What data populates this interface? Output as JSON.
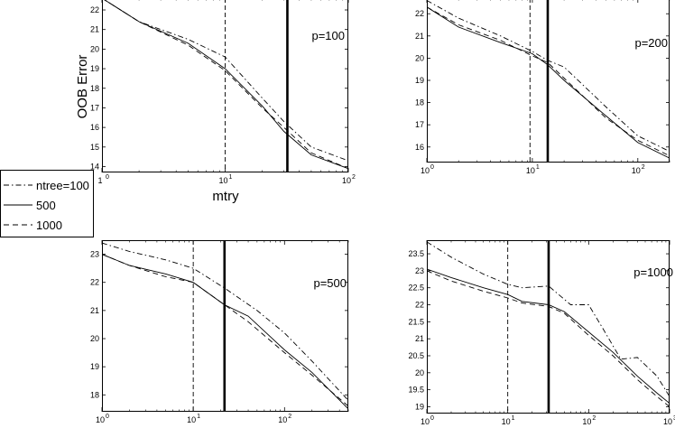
{
  "legend": {
    "entries": [
      {
        "label": "ntree=100",
        "dash": "dashdot"
      },
      {
        "label": "500",
        "dash": "solid"
      },
      {
        "label": "1000",
        "dash": "dashed"
      }
    ]
  },
  "chart_data": [
    {
      "type": "line",
      "title": "p=100",
      "xlabel": "mtry",
      "ylabel": "OOB Error",
      "xscale": "log",
      "xlim": [
        1,
        100
      ],
      "ylim": [
        13.7,
        22.6
      ],
      "xticks": [
        {
          "v": 1,
          "m": "1",
          "e": "0"
        },
        {
          "v": 10,
          "m": "10",
          "e": "1"
        },
        {
          "v": 100,
          "m": "10",
          "e": "2"
        }
      ],
      "yticks": [
        14,
        15,
        16,
        17,
        18,
        19,
        20,
        21,
        22
      ],
      "yticklabels": [
        "14",
        "15",
        "16",
        "17",
        "18",
        "19",
        "20",
        "21",
        "22"
      ],
      "vlines": [
        {
          "x": 10,
          "style": "dashed"
        },
        {
          "x": 32,
          "style": "thick"
        }
      ],
      "series": [
        {
          "name": "ntree=100",
          "dash": "dashdot",
          "x": [
            1,
            2,
            5,
            10,
            20,
            30,
            50,
            100
          ],
          "y": [
            22.6,
            21.4,
            20.5,
            19.6,
            17.5,
            16.3,
            15.0,
            14.3
          ]
        },
        {
          "name": "500",
          "dash": "solid",
          "x": [
            1,
            2,
            5,
            10,
            20,
            30,
            50,
            100
          ],
          "y": [
            22.6,
            21.4,
            20.3,
            19.0,
            17.1,
            15.8,
            14.6,
            13.9
          ]
        },
        {
          "name": "1000",
          "dash": "dashed",
          "x": [
            1,
            2,
            5,
            10,
            20,
            30,
            50,
            100
          ],
          "y": [
            22.6,
            21.4,
            20.2,
            18.9,
            17.0,
            16.0,
            14.7,
            13.9
          ]
        }
      ]
    },
    {
      "type": "line",
      "title": "p=200",
      "xscale": "log",
      "xlim": [
        1,
        200
      ],
      "ylim": [
        15.3,
        22.7
      ],
      "xticks": [
        {
          "v": 1,
          "m": "10",
          "e": "0"
        },
        {
          "v": 10,
          "m": "10",
          "e": "1"
        },
        {
          "v": 100,
          "m": "10",
          "e": "2"
        }
      ],
      "yticks": [
        16,
        17,
        18,
        19,
        20,
        21,
        22
      ],
      "yticklabels": [
        "16",
        "17",
        "18",
        "19",
        "20",
        "21",
        "22"
      ],
      "vlines": [
        {
          "x": 9.5,
          "style": "dashed"
        },
        {
          "x": 14,
          "style": "thick"
        }
      ],
      "series": [
        {
          "name": "ntree=100",
          "dash": "dashdot",
          "x": [
            1,
            2,
            5,
            10,
            14,
            20,
            50,
            100,
            200
          ],
          "y": [
            22.6,
            21.8,
            21.0,
            20.3,
            19.9,
            19.6,
            17.8,
            16.5,
            15.8
          ]
        },
        {
          "name": "500",
          "dash": "solid",
          "x": [
            1,
            2,
            5,
            10,
            14,
            20,
            50,
            100,
            200
          ],
          "y": [
            22.3,
            21.4,
            20.7,
            20.2,
            19.7,
            19.0,
            17.4,
            16.2,
            15.5
          ]
        },
        {
          "name": "1000",
          "dash": "dashed",
          "x": [
            1,
            2,
            5,
            10,
            14,
            20,
            50,
            100,
            200
          ],
          "y": [
            22.3,
            21.5,
            20.8,
            20.1,
            19.8,
            19.1,
            17.3,
            16.3,
            15.6
          ]
        }
      ]
    },
    {
      "type": "line",
      "title": "p=500",
      "xscale": "log",
      "xlim": [
        1,
        500
      ],
      "ylim": [
        17.4,
        23.5
      ],
      "xticks": [
        {
          "v": 1,
          "m": "10",
          "e": "0"
        },
        {
          "v": 10,
          "m": "10",
          "e": "1"
        },
        {
          "v": 100,
          "m": "10",
          "e": "2"
        }
      ],
      "yticks": [
        18,
        19,
        20,
        21,
        22,
        23
      ],
      "yticklabels": [
        "18",
        "19",
        "20",
        "21",
        "22",
        "23"
      ],
      "vlines": [
        {
          "x": 10,
          "style": "dashed"
        },
        {
          "x": 22,
          "style": "thick"
        }
      ],
      "series": [
        {
          "name": "ntree=100",
          "dash": "dashdot",
          "x": [
            1,
            2,
            5,
            10,
            22,
            50,
            100,
            200,
            500
          ],
          "y": [
            23.4,
            23.1,
            22.8,
            22.5,
            21.8,
            21.0,
            20.2,
            19.2,
            17.8
          ]
        },
        {
          "name": "500",
          "dash": "solid",
          "x": [
            1,
            2,
            5,
            10,
            22,
            40,
            100,
            200,
            500
          ],
          "y": [
            23.0,
            22.6,
            22.3,
            22.0,
            21.2,
            20.8,
            19.6,
            18.8,
            17.5
          ]
        },
        {
          "name": "1000",
          "dash": "dashed",
          "x": [
            1,
            2,
            5,
            10,
            22,
            40,
            100,
            200,
            500
          ],
          "y": [
            23.0,
            22.6,
            22.2,
            22.0,
            21.2,
            20.6,
            19.5,
            18.7,
            17.6
          ]
        }
      ]
    },
    {
      "type": "line",
      "title": "p=1000",
      "xscale": "log",
      "xlim": [
        1,
        1000
      ],
      "ylim": [
        18.8,
        23.9
      ],
      "xticks": [
        {
          "v": 1,
          "m": "10",
          "e": "0"
        },
        {
          "v": 10,
          "m": "10",
          "e": "1"
        },
        {
          "v": 100,
          "m": "10",
          "e": "2"
        },
        {
          "v": 1000,
          "m": "10",
          "e": "3"
        }
      ],
      "yticks": [
        19,
        19.5,
        20,
        20.5,
        21,
        21.5,
        22,
        22.5,
        23,
        23.5
      ],
      "yticklabels": [
        "19",
        "19.5",
        "20",
        "20.5",
        "21",
        "21.5",
        "22",
        "22.5",
        "23",
        "23.5"
      ],
      "vlines": [
        {
          "x": 10,
          "style": "dashed"
        },
        {
          "x": 32,
          "style": "thick"
        }
      ],
      "series": [
        {
          "name": "ntree=100",
          "dash": "dashdot",
          "x": [
            1,
            2,
            5,
            10,
            15,
            32,
            60,
            100,
            150,
            250,
            400,
            700,
            1000
          ],
          "y": [
            23.85,
            23.4,
            22.9,
            22.6,
            22.5,
            22.55,
            22.0,
            22.0,
            21.3,
            20.4,
            20.45,
            19.9,
            19.3
          ]
        },
        {
          "name": "500",
          "dash": "solid",
          "x": [
            1,
            2,
            5,
            10,
            15,
            32,
            50,
            100,
            200,
            400,
            700,
            1000
          ],
          "y": [
            23.05,
            22.8,
            22.5,
            22.3,
            22.1,
            22.0,
            21.8,
            21.2,
            20.6,
            19.9,
            19.4,
            19.1
          ]
        },
        {
          "name": "1000",
          "dash": "dashed",
          "x": [
            1,
            2,
            5,
            10,
            15,
            32,
            50,
            100,
            200,
            400,
            700,
            1000
          ],
          "y": [
            23.0,
            22.7,
            22.4,
            22.2,
            22.05,
            21.95,
            21.75,
            21.1,
            20.5,
            19.8,
            19.3,
            19.0
          ]
        }
      ]
    }
  ]
}
